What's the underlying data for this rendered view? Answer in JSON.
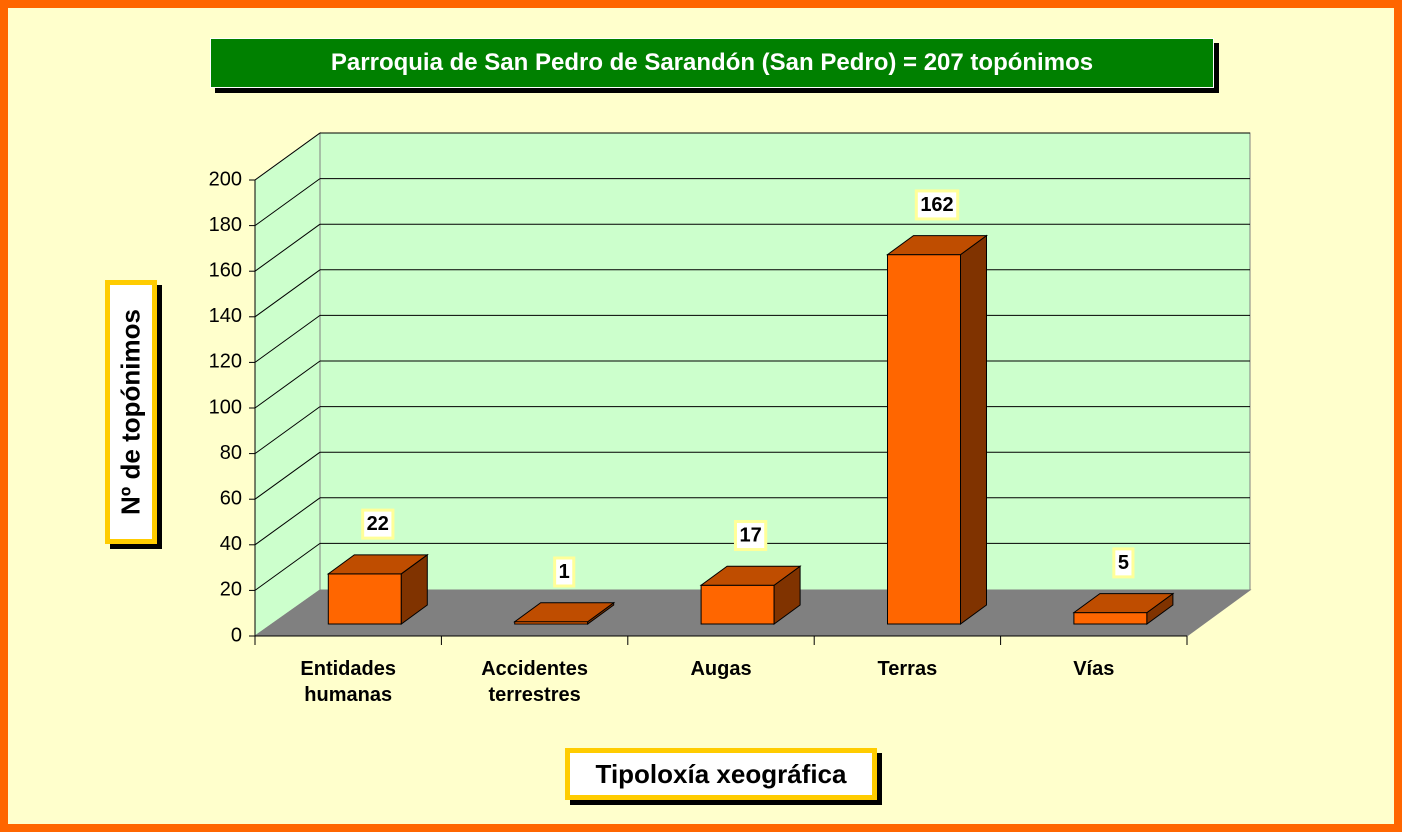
{
  "chart_data": {
    "type": "bar3d",
    "title": "Parroquia de San Pedro de Sarandón (San Pedro) = 207 topónimos",
    "xlabel": "Tipoloxía xeográfica",
    "ylabel": "Nº de topónimos",
    "categories": [
      "Entidades humanas",
      "Accidentes terrestres",
      "Augas",
      "Terras",
      "Vías"
    ],
    "values": [
      22,
      1,
      17,
      162,
      5
    ],
    "color": "#ff6600",
    "ylim": [
      0,
      200
    ],
    "yticks": [
      0,
      20,
      40,
      60,
      80,
      100,
      120,
      140,
      160,
      180,
      200
    ],
    "grid": true
  }
}
